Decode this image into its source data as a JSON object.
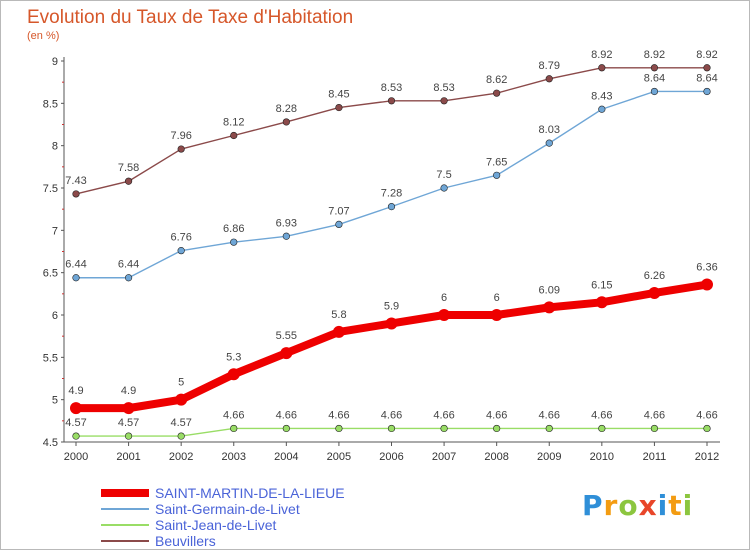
{
  "chart_data": {
    "type": "line",
    "title": "Evolution du Taux de Taxe d'Habitation",
    "unit_label": "(en %)",
    "xlabel": "",
    "ylabel": "",
    "categories": [
      "2000",
      "2001",
      "2002",
      "2003",
      "2004",
      "2005",
      "2006",
      "2007",
      "2008",
      "2009",
      "2010",
      "2011",
      "2012"
    ],
    "ylim": [
      4.5,
      9
    ],
    "yticks": [
      "4.5",
      "5",
      "5.5",
      "6",
      "6.5",
      "7",
      "7.5",
      "8",
      "8.5",
      "9"
    ],
    "grid": false,
    "legend_position": "bottom-left",
    "series": [
      {
        "name": "SAINT-MARTIN-DE-LA-LIEUE",
        "color": "#ee0000",
        "emphasis": true,
        "values": [
          4.9,
          4.9,
          5,
          5.3,
          5.55,
          5.8,
          5.9,
          6,
          6,
          6.09,
          6.15,
          6.26,
          6.36
        ],
        "labels": [
          "4.9",
          "4.9",
          "5",
          "5.3",
          "5.55",
          "5.8",
          "5.9",
          "6",
          "6",
          "6.09",
          "6.15",
          "6.26",
          "6.36"
        ]
      },
      {
        "name": "Saint-Germain-de-Livet",
        "color": "#6fa6d6",
        "emphasis": false,
        "values": [
          6.44,
          6.44,
          6.76,
          6.86,
          6.93,
          7.07,
          7.28,
          7.5,
          7.65,
          8.03,
          8.43,
          8.64,
          8.64
        ],
        "labels": [
          "6.44",
          "6.44",
          "6.76",
          "6.86",
          "6.93",
          "7.07",
          "7.28",
          "7.5",
          "7.65",
          "8.03",
          "8.43",
          "8.64",
          "8.64"
        ]
      },
      {
        "name": "Saint-Jean-de-Livet",
        "color": "#99dd66",
        "emphasis": false,
        "values": [
          4.57,
          4.57,
          4.57,
          4.66,
          4.66,
          4.66,
          4.66,
          4.66,
          4.66,
          4.66,
          4.66,
          4.66,
          4.66
        ],
        "labels": [
          "4.57",
          "4.57",
          "4.57",
          "4.66",
          "4.66",
          "4.66",
          "4.66",
          "4.66",
          "4.66",
          "4.66",
          "4.66",
          "4.66",
          "4.66"
        ]
      },
      {
        "name": "Beuvillers",
        "color": "#8b4a4a",
        "emphasis": false,
        "values": [
          7.43,
          7.58,
          7.96,
          8.12,
          8.28,
          8.45,
          8.53,
          8.53,
          8.62,
          8.79,
          8.92,
          8.92,
          8.92
        ],
        "labels": [
          "7.43",
          "7.58",
          "7.96",
          "8.12",
          "8.28",
          "8.45",
          "8.53",
          "8.53",
          "8.62",
          "8.79",
          "8.92",
          "8.92",
          "8.92"
        ]
      }
    ]
  },
  "logo": {
    "text": "Proxiti",
    "letters": [
      {
        "ch": "P",
        "color": "#2f8fd8"
      },
      {
        "ch": "r",
        "color": "#f39c12"
      },
      {
        "ch": "o",
        "color": "#8cc63f"
      },
      {
        "ch": "x",
        "color": "#e8462a"
      },
      {
        "ch": "i",
        "color": "#2f8fd8"
      },
      {
        "ch": "t",
        "color": "#f39c12"
      },
      {
        "ch": "i",
        "color": "#8cc63f"
      }
    ]
  }
}
